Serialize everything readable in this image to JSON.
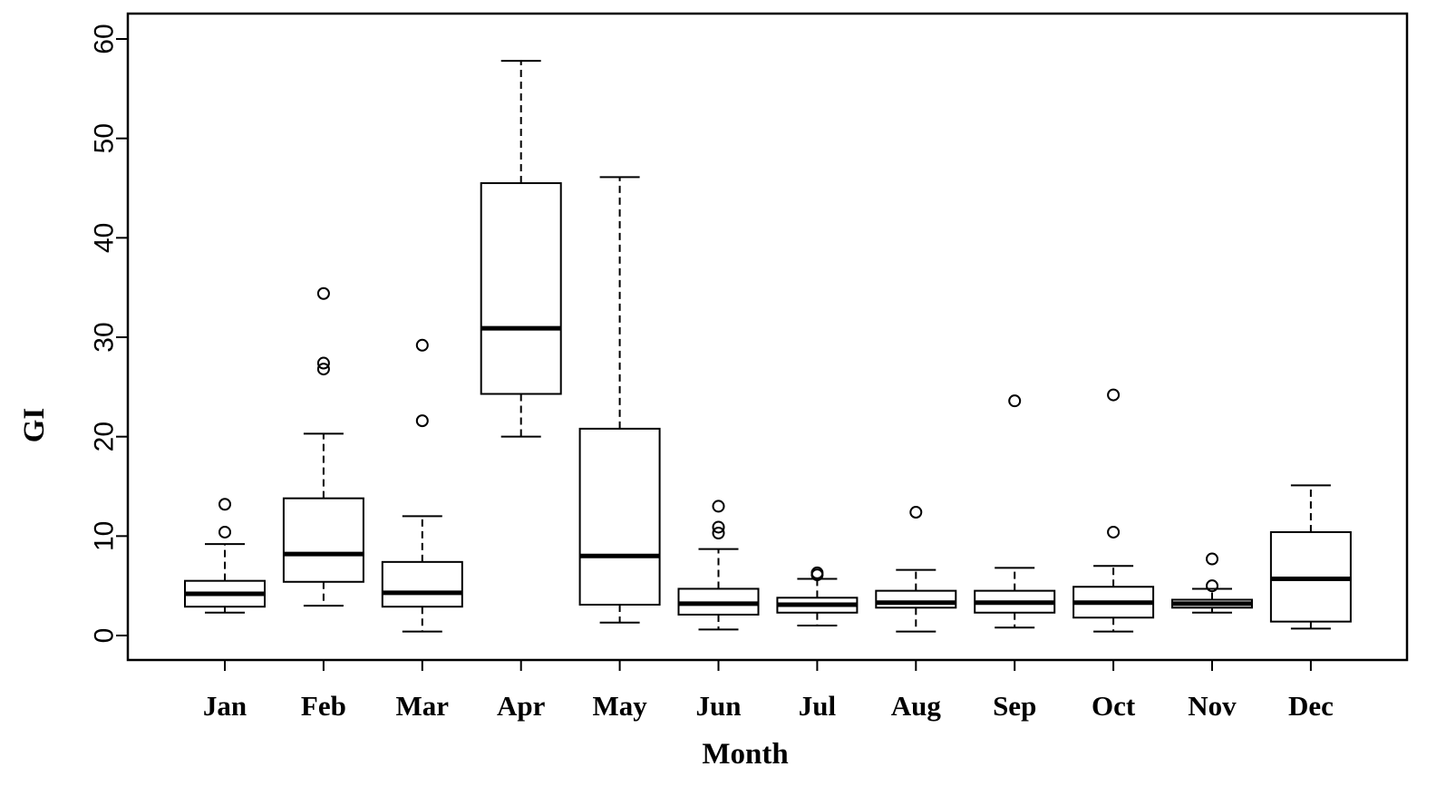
{
  "chart_data": {
    "type": "boxplot",
    "xlabel": "Month",
    "ylabel": "GI",
    "ylim": [
      0,
      60
    ],
    "yticks": [
      0,
      10,
      20,
      30,
      40,
      50,
      60
    ],
    "grid": false,
    "categories": [
      "Jan",
      "Feb",
      "Mar",
      "Apr",
      "May",
      "Jun",
      "Jul",
      "Aug",
      "Sep",
      "Oct",
      "Nov",
      "Dec"
    ],
    "boxes": [
      {
        "label": "Jan",
        "whisker_low": 2.3,
        "q1": 2.9,
        "median": 4.2,
        "q3": 5.5,
        "whisker_high": 9.2,
        "outliers": [
          10.4,
          13.2
        ]
      },
      {
        "label": "Feb",
        "whisker_low": 3.0,
        "q1": 5.4,
        "median": 8.2,
        "q3": 13.8,
        "whisker_high": 20.3,
        "outliers": [
          26.8,
          27.4,
          34.4
        ]
      },
      {
        "label": "Mar",
        "whisker_low": 0.4,
        "q1": 2.9,
        "median": 4.3,
        "q3": 7.4,
        "whisker_high": 12.0,
        "outliers": [
          21.6,
          29.2
        ]
      },
      {
        "label": "Apr",
        "whisker_low": 20.0,
        "q1": 24.3,
        "median": 30.9,
        "q3": 45.5,
        "whisker_high": 57.8,
        "outliers": []
      },
      {
        "label": "May",
        "whisker_low": 1.3,
        "q1": 3.1,
        "median": 8.0,
        "q3": 20.8,
        "whisker_high": 46.1,
        "outliers": []
      },
      {
        "label": "Jun",
        "whisker_low": 0.6,
        "q1": 2.1,
        "median": 3.2,
        "q3": 4.7,
        "whisker_high": 8.7,
        "outliers": [
          10.3,
          10.9,
          13.0
        ]
      },
      {
        "label": "Jul",
        "whisker_low": 1.0,
        "q1": 2.3,
        "median": 3.1,
        "q3": 3.8,
        "whisker_high": 5.7,
        "outliers": [
          6.1,
          6.3
        ]
      },
      {
        "label": "Aug",
        "whisker_low": 0.4,
        "q1": 2.8,
        "median": 3.3,
        "q3": 4.5,
        "whisker_high": 6.6,
        "outliers": [
          12.4
        ]
      },
      {
        "label": "Sep",
        "whisker_low": 0.8,
        "q1": 2.3,
        "median": 3.3,
        "q3": 4.5,
        "whisker_high": 6.8,
        "outliers": [
          23.6
        ]
      },
      {
        "label": "Oct",
        "whisker_low": 0.4,
        "q1": 1.8,
        "median": 3.3,
        "q3": 4.9,
        "whisker_high": 7.0,
        "outliers": [
          10.4,
          24.2
        ]
      },
      {
        "label": "Nov",
        "whisker_low": 2.3,
        "q1": 2.8,
        "median": 3.2,
        "q3": 3.6,
        "whisker_high": 4.7,
        "outliers": [
          5.0,
          7.7
        ]
      },
      {
        "label": "Dec",
        "whisker_low": 0.7,
        "q1": 1.4,
        "median": 5.7,
        "q3": 10.4,
        "whisker_high": 15.1,
        "outliers": []
      }
    ]
  }
}
